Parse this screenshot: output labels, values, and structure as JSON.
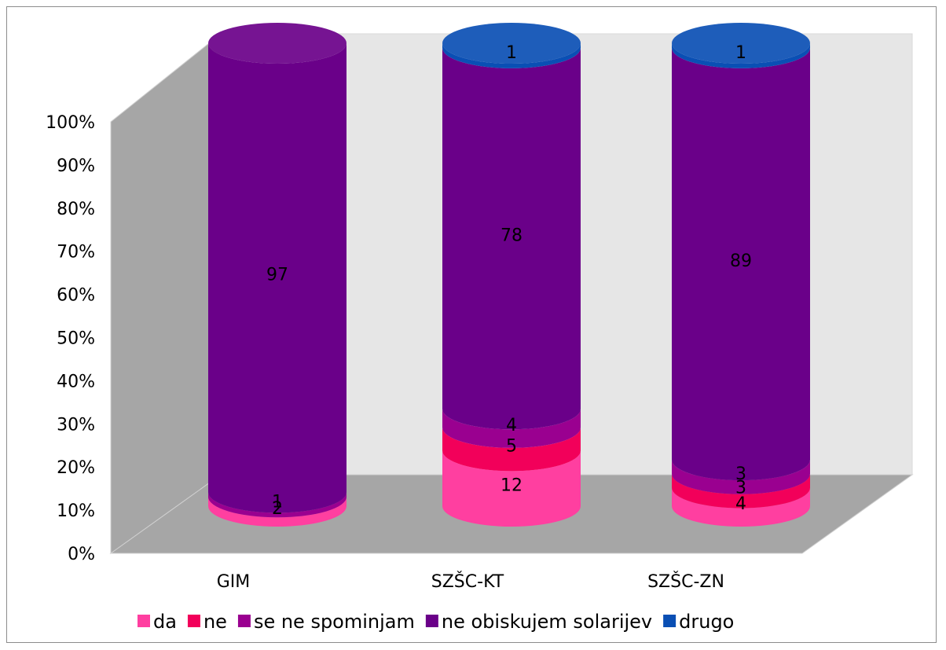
{
  "chart_data": {
    "type": "bar",
    "stacked": "percent",
    "shape": "cylinder-3d",
    "categories": [
      "GIM",
      "SZŠC-KT",
      "SZŠC-ZN"
    ],
    "series": [
      {
        "name": "da",
        "values": [
          2,
          12,
          4
        ],
        "color": "#ff3fa0"
      },
      {
        "name": "ne",
        "values": [
          0,
          5,
          3
        ],
        "color": "#f2005a"
      },
      {
        "name": "se ne spominjam",
        "values": [
          1,
          4,
          3
        ],
        "color": "#9a0090"
      },
      {
        "name": "ne obiskujem solarijev",
        "values": [
          97,
          78,
          89
        ],
        "color": "#6a0089"
      },
      {
        "name": "drugo",
        "values": [
          0,
          1,
          1
        ],
        "color": "#0a4fb4"
      }
    ],
    "yticks": [
      "0%",
      "10%",
      "20%",
      "30%",
      "40%",
      "50%",
      "60%",
      "70%",
      "80%",
      "90%",
      "100%"
    ],
    "ylim": [
      0,
      100
    ],
    "grid": false,
    "legend_position": "bottom",
    "wall_color": "#e6e6e6",
    "side_wall_color": "#a6a6a6",
    "floor_color": "#a6a6a6"
  }
}
